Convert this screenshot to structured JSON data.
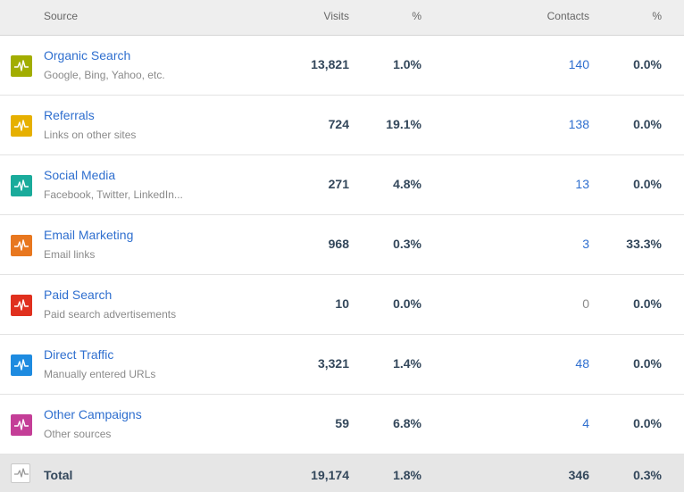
{
  "header": {
    "source": "Source",
    "visits": "Visits",
    "visits_pct": "%",
    "contacts": "Contacts",
    "contacts_pct": "%"
  },
  "rows": [
    {
      "name": "Organic Search",
      "desc": "Google, Bing, Yahoo, etc.",
      "visits": "13,821",
      "visits_pct": "1.0%",
      "contacts": "140",
      "contacts_pct": "0.0%",
      "color": "#a2ad00",
      "icon": "activity-icon"
    },
    {
      "name": "Referrals",
      "desc": "Links on other sites",
      "visits": "724",
      "visits_pct": "19.1%",
      "contacts": "138",
      "contacts_pct": "0.0%",
      "color": "#e6b000",
      "icon": "activity-icon"
    },
    {
      "name": "Social Media",
      "desc": "Facebook, Twitter, LinkedIn...",
      "visits": "271",
      "visits_pct": "4.8%",
      "contacts": "13",
      "contacts_pct": "0.0%",
      "color": "#1aab9b",
      "icon": "activity-icon"
    },
    {
      "name": "Email Marketing",
      "desc": "Email links",
      "visits": "968",
      "visits_pct": "0.3%",
      "contacts": "3",
      "contacts_pct": "33.3%",
      "color": "#e8771f",
      "icon": "activity-icon"
    },
    {
      "name": "Paid Search",
      "desc": "Paid search advertisements",
      "visits": "10",
      "visits_pct": "0.0%",
      "contacts": "0",
      "contacts_pct": "0.0%",
      "color": "#e0301e",
      "icon": "activity-icon"
    },
    {
      "name": "Direct Traffic",
      "desc": "Manually entered URLs",
      "visits": "3,321",
      "visits_pct": "1.4%",
      "contacts": "48",
      "contacts_pct": "0.0%",
      "color": "#1e8be0",
      "icon": "activity-icon"
    },
    {
      "name": "Other Campaigns",
      "desc": "Other sources",
      "visits": "59",
      "visits_pct": "6.8%",
      "contacts": "4",
      "contacts_pct": "0.0%",
      "color": "#c43e97",
      "icon": "activity-icon"
    }
  ],
  "total": {
    "label": "Total",
    "visits": "19,174",
    "visits_pct": "1.8%",
    "contacts": "346",
    "contacts_pct": "0.3%",
    "icon": "activity-icon"
  }
}
